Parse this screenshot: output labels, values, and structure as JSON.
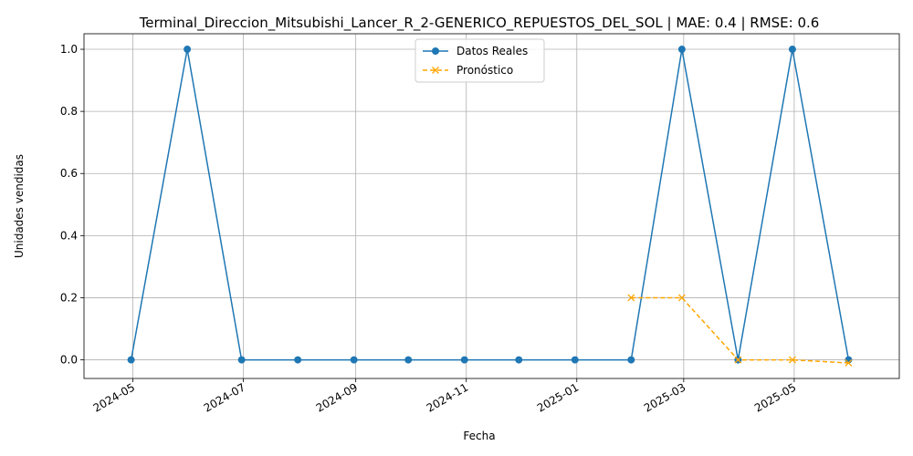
{
  "chart_data": {
    "type": "line",
    "title": "Terminal_Direccion_Mitsubishi_Lancer_R_2-GENERICO_REPUESTOS_DEL_SOL | MAE: 0.4 | RMSE: 0.6",
    "xlabel": "Fecha",
    "ylabel": "Unidades vendidas",
    "xlim": [
      "2024-04-04",
      "2025-06-28"
    ],
    "ylim": [
      -0.06,
      1.05
    ],
    "x_ticks": [
      "2024-05",
      "2024-07",
      "2024-09",
      "2024-11",
      "2025-01",
      "2025-03",
      "2025-05"
    ],
    "y_ticks": [
      "0.0",
      "0.2",
      "0.4",
      "0.6",
      "0.8",
      "1.0"
    ],
    "grid": true,
    "legend_position": "top-center",
    "series": [
      {
        "name": "Datos Reales",
        "color": "#1f77b4",
        "marker": "circle",
        "line_style": "solid",
        "x": [
          "2024-04-30",
          "2024-05-31",
          "2024-06-30",
          "2024-07-31",
          "2024-08-31",
          "2024-09-30",
          "2024-10-31",
          "2024-11-30",
          "2024-12-31",
          "2025-01-31",
          "2025-02-28",
          "2025-03-31",
          "2025-04-30",
          "2025-05-31"
        ],
        "y": [
          0,
          1,
          0,
          0,
          0,
          0,
          0,
          0,
          0,
          0,
          1,
          0,
          1,
          0
        ]
      },
      {
        "name": "Pronóstico",
        "color": "#ffa500",
        "marker": "x",
        "line_style": "dashed",
        "x": [
          "2025-01-31",
          "2025-02-28",
          "2025-03-31",
          "2025-04-30",
          "2025-05-31"
        ],
        "y": [
          0.2,
          0.2,
          0.0,
          0.0,
          -0.01
        ]
      }
    ]
  }
}
